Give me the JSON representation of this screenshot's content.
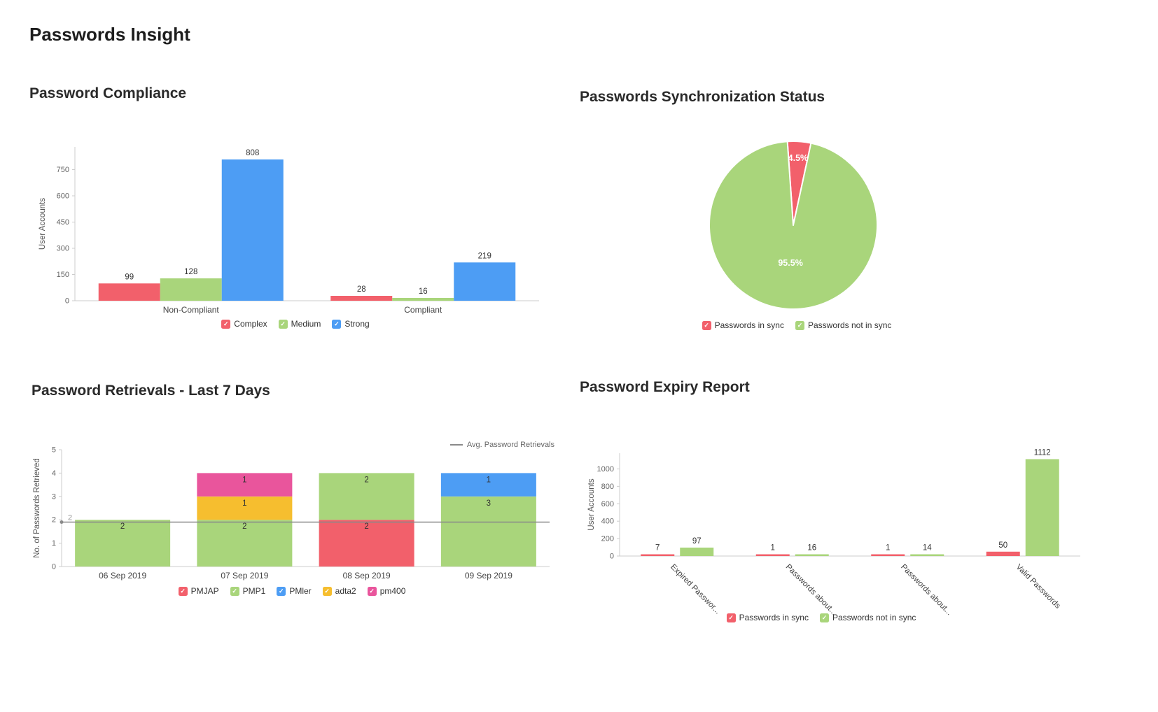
{
  "page": {
    "title": "Passwords Insight"
  },
  "colors": {
    "red": "#F2606B",
    "green": "#A9D57B",
    "blue": "#4D9DF4",
    "yellow": "#F6BE2F",
    "pink": "#E9559C",
    "axis_line": "#CCCCCC",
    "tick_text": "#666666",
    "axis_label_text": "#555555",
    "category_text": "#444444",
    "value_text": "#333333",
    "avg_line": "#8A8A8A",
    "avg_label_text": "#999999",
    "pie_label_text": "#FFFFFF"
  },
  "chart_data": [
    {
      "id": "compliance",
      "type": "bar",
      "title": "Password Compliance",
      "ylabel": "User Accounts",
      "ylim": [
        0,
        880
      ],
      "yticks": [
        0,
        150,
        300,
        450,
        600,
        750
      ],
      "categories": [
        "Non-Compliant",
        "Compliant"
      ],
      "series": [
        {
          "name": "Complex",
          "color": "red",
          "values": [
            99,
            28
          ]
        },
        {
          "name": "Medium",
          "color": "green",
          "values": [
            128,
            16
          ]
        },
        {
          "name": "Strong",
          "color": "blue",
          "values": [
            808,
            219
          ]
        }
      ],
      "legend": [
        {
          "label": "Complex",
          "color": "red"
        },
        {
          "label": "Medium",
          "color": "green"
        },
        {
          "label": "Strong",
          "color": "blue"
        }
      ]
    },
    {
      "id": "sync",
      "type": "pie",
      "title": "Passwords Synchronization Status",
      "slices": [
        {
          "name": "Passwords in sync",
          "value": 4.5,
          "label": "4.5%",
          "color": "red"
        },
        {
          "name": "Passwords not in sync",
          "value": 95.5,
          "label": "95.5%",
          "color": "green"
        }
      ],
      "legend": [
        {
          "label": "Passwords in sync",
          "color": "red"
        },
        {
          "label": "Passwords not in sync",
          "color": "green"
        }
      ]
    },
    {
      "id": "retrievals",
      "type": "stacked-bar",
      "title": "Password Retrievals - Last 7 Days",
      "ylabel": "No. of Passwords Retrieved",
      "ylim": [
        0,
        5
      ],
      "yticks": [
        0,
        1,
        2,
        3,
        4,
        5
      ],
      "categories": [
        "06 Sep 2019",
        "07 Sep 2019",
        "08 Sep 2019",
        "09 Sep 2019"
      ],
      "series": [
        {
          "name": "PMJAP",
          "color": "red",
          "values": [
            0,
            0,
            2,
            0
          ]
        },
        {
          "name": "PMP1",
          "color": "green",
          "values": [
            2,
            2,
            2,
            3
          ]
        },
        {
          "name": "PMler",
          "color": "blue",
          "values": [
            0,
            0,
            0,
            1
          ]
        },
        {
          "name": "adta2",
          "color": "yellow",
          "values": [
            0,
            1,
            0,
            0
          ]
        },
        {
          "name": "pm400",
          "color": "pink",
          "values": [
            0,
            1,
            0,
            0
          ]
        }
      ],
      "avg_line": {
        "value": 1.9,
        "label": "2",
        "legend_label": "Avg. Password Retrievals"
      },
      "legend": [
        {
          "label": "PMJAP",
          "color": "red"
        },
        {
          "label": "PMP1",
          "color": "green"
        },
        {
          "label": "PMler",
          "color": "blue"
        },
        {
          "label": "adta2",
          "color": "yellow"
        },
        {
          "label": "pm400",
          "color": "pink"
        }
      ]
    },
    {
      "id": "expiry",
      "type": "bar",
      "title": "Password Expiry Report",
      "ylabel": "User Accounts",
      "ylim": [
        0,
        1180
      ],
      "yticks": [
        0,
        200,
        400,
        600,
        800,
        1000
      ],
      "categories": [
        "Expired Passwor...",
        "Passwords about...",
        "Passwords about...",
        "Valid Passwords"
      ],
      "rotate_category_labels": true,
      "series": [
        {
          "name": "Passwords in sync",
          "color": "red",
          "values": [
            7,
            1,
            1,
            50
          ]
        },
        {
          "name": "Passwords not in sync",
          "color": "green",
          "values": [
            97,
            16,
            14,
            1112
          ]
        }
      ],
      "legend": [
        {
          "label": "Passwords in sync",
          "color": "red"
        },
        {
          "label": "Passwords not in sync",
          "color": "green"
        }
      ]
    }
  ]
}
